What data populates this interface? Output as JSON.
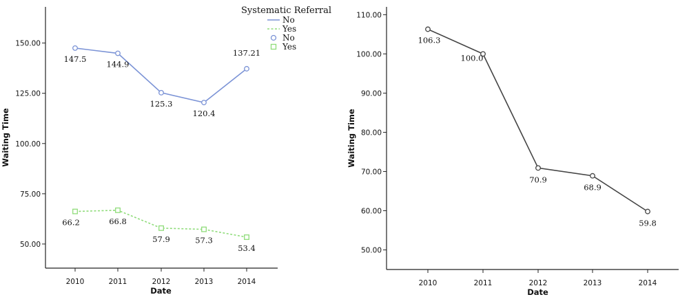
{
  "chart_data": [
    {
      "type": "line",
      "title": "",
      "xlabel": "Date",
      "ylabel": "Waiting Time",
      "categories": [
        "2010",
        "2011",
        "2012",
        "2013",
        "2014"
      ],
      "y_ticks": [
        "50.00",
        "75.00",
        "100.00",
        "125.00",
        "150.00"
      ],
      "ylim": [
        38,
        168
      ],
      "grid": false,
      "legend": {
        "title": "Systematic Referral",
        "placement": "top-right",
        "entries": [
          "No",
          "Yes",
          "No",
          "Yes"
        ]
      },
      "series": [
        {
          "name": "No",
          "color": "#7b93d6",
          "marker": "circle",
          "line_style": "solid",
          "values": [
            147.5,
            144.9,
            125.3,
            120.4,
            137.21
          ],
          "labels": [
            "147.5",
            "144.9",
            "125.3",
            "120.4",
            "137.21"
          ]
        },
        {
          "name": "Yes",
          "color": "#8fdc7a",
          "marker": "square",
          "line_style": "dotted",
          "values": [
            66.2,
            66.8,
            57.9,
            57.3,
            53.4
          ],
          "labels": [
            "66.2",
            "66.8",
            "57.9",
            "57.3",
            "53.4"
          ]
        }
      ]
    },
    {
      "type": "line",
      "title": "",
      "xlabel": "Date",
      "ylabel": "Waiting Time",
      "categories": [
        "2010",
        "2011",
        "2012",
        "2013",
        "2014"
      ],
      "y_ticks": [
        "50.00",
        "60.00",
        "70.00",
        "80.00",
        "90.00",
        "100.00",
        "110.00"
      ],
      "ylim": [
        45,
        112
      ],
      "grid": false,
      "series": [
        {
          "color": "#444444",
          "marker": "circle",
          "line_style": "solid",
          "values": [
            106.3,
            100.0,
            70.9,
            68.9,
            59.8
          ],
          "labels": [
            "106.3",
            "100.0",
            "70.9",
            "68.9",
            "59.8"
          ]
        }
      ]
    }
  ]
}
